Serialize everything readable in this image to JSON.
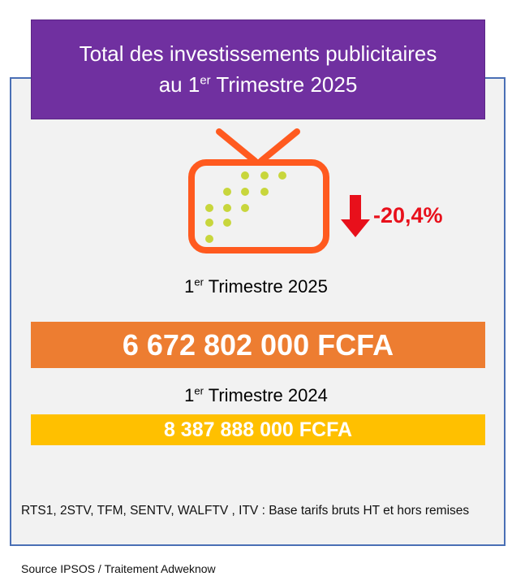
{
  "title": {
    "line1": "Total des investissements publicitaires",
    "line2_prefix": "au 1",
    "line2_sup": "er",
    "line2_suffix": " Trimestre 2025"
  },
  "icons": {
    "tv": "tv-icon",
    "trend": "arrow-down-icon"
  },
  "colors": {
    "title_bg": "#7030a0",
    "tv_outline": "#ff5a1f",
    "tv_dots": "#c8d63c",
    "trend_red": "#e8101b",
    "current_bar": "#ed7d31",
    "previous_bar": "#ffc000",
    "card_border": "#4a6fb5"
  },
  "change": {
    "direction": "down",
    "value": "-20,4%"
  },
  "current": {
    "label_prefix": "1",
    "label_sup": "er",
    "label_suffix": " Trimestre 2025",
    "amount": "6 672 802 000 FCFA"
  },
  "previous": {
    "label_prefix": "1",
    "label_sup": "er",
    "label_suffix": " Trimestre 2024",
    "amount": "8 387 888 000 FCFA"
  },
  "footnote": "RTS1, 2STV, TFM, SENTV, WALFTV , ITV : Base tarifs bruts HT et hors remises",
  "source": "Source IPSOS / Traitement Adweknow"
}
